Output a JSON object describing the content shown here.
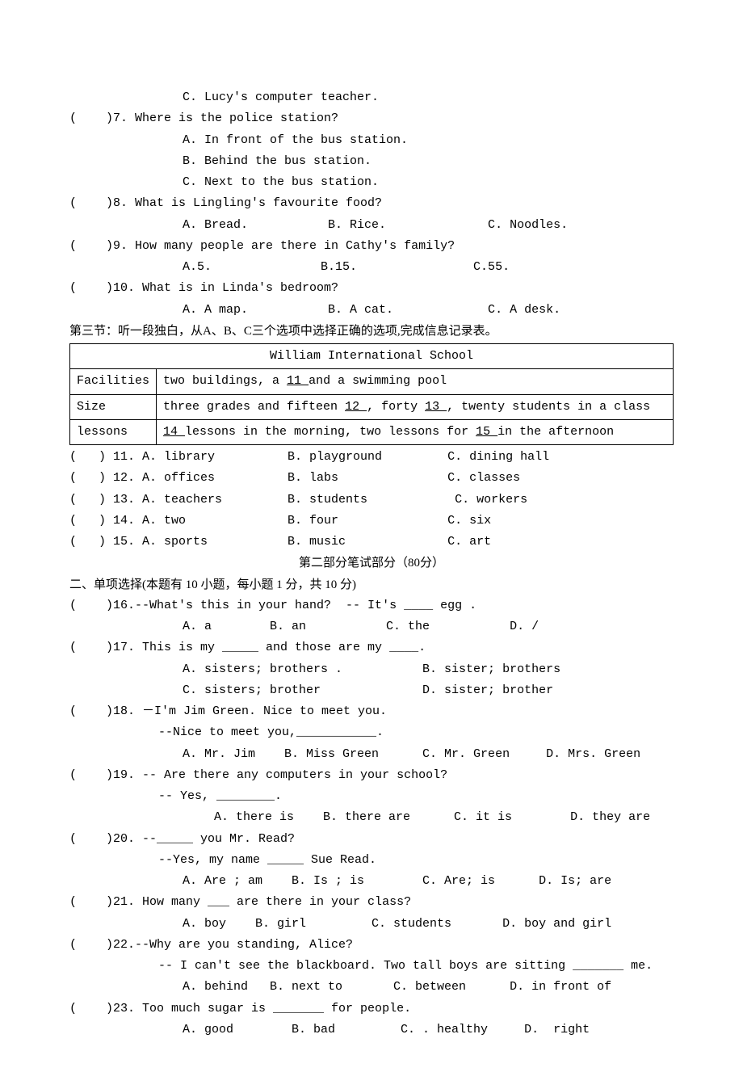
{
  "listening_tail": {
    "q6_c": "C. Lucy's computer teacher.",
    "q7": {
      "prompt": "(    )7. Where is the police station?",
      "a": "A. In front of the bus station.",
      "b": "B. Behind the bus station.",
      "c": "C. Next to the bus station."
    },
    "q8": {
      "prompt": "(    )8. What is Lingling's favourite food?",
      "a": "A. Bread.           B. Rice.              C. Noodles."
    },
    "q9": {
      "prompt": "(    )9. How many people are there in Cathy's family?",
      "a": "A.5.               B.15.                C.55."
    },
    "q10": {
      "prompt": "(    )10. What is in Linda's bedroom?",
      "a": "A. A map.           B. A cat.             C. A desk."
    }
  },
  "section3_intro": "第三节：听一段独白，从A、B、C三个选项中选择正确的选项,完成信息记录表。",
  "table": {
    "title": "William International School",
    "row1_label": "Facilities",
    "row1_a": "two buildings, a ",
    "row1_blank": "  11  ",
    "row1_b": " and a swimming pool",
    "row2_label": "Size",
    "row2_a": "three grades and fifteen ",
    "row2_b1": " 12  ",
    "row2_c": ", forty ",
    "row2_b2": " 13  ",
    "row2_d": ", twenty students in a class",
    "row3_label": "lessons",
    "row3_b1": " 14 ",
    "row3_a": " lessons in the morning, two lessons for ",
    "row3_b2": " 15 ",
    "row3_c": " in the afternoon"
  },
  "table_q": {
    "q11": "(   ) 11. A. library          B. playground         C. dining hall",
    "q12": "(   ) 12. A. offices          B. labs               C. classes",
    "q13": "(   ) 13. A. teachers         B. students            C. workers",
    "q14": "(   ) 14. A. two              B. four               C. six",
    "q15": "(   ) 15. A. sports           B. music              C. art"
  },
  "part2_title": "第二部分笔试部分（80分）",
  "mc_title": "二、单项选择(本题有 10 小题，每小题 1 分，共 10 分)",
  "mc": {
    "q16": {
      "prompt": "(    )16.--What's this in your hand?  -- It's ____ egg .",
      "opts": "A. a        B. an           C. the           D. /"
    },
    "q17": {
      "prompt": "(    )17. This is my _____ and those are my ____.",
      "row1": "A. sisters; brothers .           B. sister; brothers",
      "row2": "C. sisters; brother              D. sister; brother"
    },
    "q18": {
      "prompt": "(    )18. －I'm Jim Green. Nice to meet you.",
      "sub": "--Nice to meet you,___________.",
      "opts": "A. Mr. Jim    B. Miss Green      C. Mr. Green     D. Mrs. Green"
    },
    "q19": {
      "prompt": "(    )19. -- Are there any computers in your school?",
      "sub": "-- Yes, ________.",
      "opts": " A. there is    B. there are      C. it is        D. they are"
    },
    "q20": {
      "prompt": "(    )20. --_____ you Mr. Read?",
      "sub": "--Yes, my name _____ Sue Read.",
      "opts": "A. Are ; am    B. Is ; is        C. Are; is      D. Is; are"
    },
    "q21": {
      "prompt": "(    )21. How many ___ are there in your class?",
      "opts": "A. boy    B. girl         C. students       D. boy and girl"
    },
    "q22": {
      "prompt": "(    )22.--Why are you standing, Alice?",
      "sub": "-- I can't see the blackboard. Two tall boys are sitting _______ me.",
      "opts": "A. behind   B. next to       C. between      D. in front of"
    },
    "q23": {
      "prompt": "(    )23. Too much sugar is _______ for people.",
      "opts": "A. good        B. bad         C. . healthy     D.  right"
    }
  }
}
